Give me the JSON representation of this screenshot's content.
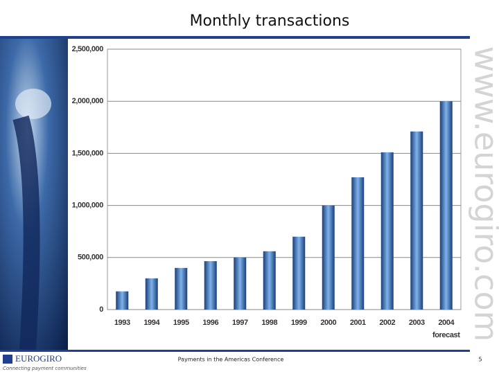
{
  "slide": {
    "footer": "Payments in the Americas Conference",
    "page_number": "5",
    "watermark": "www.eurogiro.com",
    "logo": "EUROGIRO",
    "tagline": "Connecting payment communities"
  },
  "chart_data": {
    "type": "bar",
    "title": "Monthly transactions",
    "categories": [
      "1993",
      "1994",
      "1995",
      "1996",
      "1997",
      "1998",
      "1999",
      "2000",
      "2001",
      "2002",
      "2003",
      "2004"
    ],
    "annotation": "forecast",
    "values": [
      175000,
      300000,
      400000,
      465000,
      500000,
      560000,
      700000,
      1000000,
      1270000,
      1510000,
      1710000,
      2000000
    ],
    "color": "#1a3f7a",
    "ylim": [
      0,
      2500000
    ],
    "yticks": [
      0,
      {
        "value": 500000,
        "label": "500,000"
      },
      {
        "value": 1000000,
        "label": "1,000,000"
      },
      {
        "value": 1500000,
        "label": "1,500,000"
      },
      {
        "value": 2000000,
        "label": "2,000,000"
      },
      {
        "value": 2500000,
        "label": "2,500,000"
      }
    ],
    "grid": true
  }
}
